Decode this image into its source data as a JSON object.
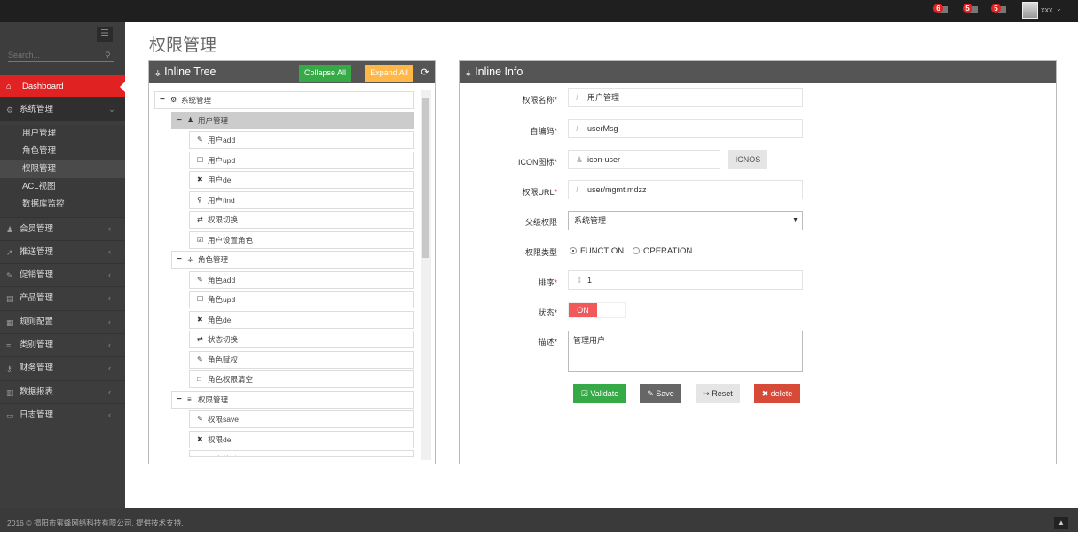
{
  "topbar": {
    "notifications": [
      {
        "count": "6",
        "icon": "bell-icon"
      },
      {
        "count": "5",
        "icon": "envelope-icon"
      },
      {
        "count": "5",
        "icon": "tasks-icon"
      }
    ],
    "user": "xxx"
  },
  "sidebar": {
    "search_placeholder": "Search...",
    "dashboard": "Dashboard",
    "items": [
      {
        "label": "系统管理",
        "icon": "cogs-icon",
        "expanded": true,
        "children": [
          "用户管理",
          "角色管理",
          "权限管理",
          "ACL视图",
          "数据库监控"
        ],
        "active_child": "权限管理"
      },
      {
        "label": "会员管理",
        "icon": "user-icon"
      },
      {
        "label": "推送管理",
        "icon": "share-icon"
      },
      {
        "label": "促销管理",
        "icon": "pencil-icon"
      },
      {
        "label": "产品管理",
        "icon": "book-icon"
      },
      {
        "label": "规则配置",
        "icon": "list-alt-icon"
      },
      {
        "label": "类别管理",
        "icon": "list-icon"
      },
      {
        "label": "财务管理",
        "icon": "key-icon"
      },
      {
        "label": "数据报表",
        "icon": "chart-icon"
      },
      {
        "label": "日志管理",
        "icon": "credit-card-icon"
      }
    ]
  },
  "page": {
    "title": "权限管理"
  },
  "tree": {
    "title": "Inline Tree",
    "collapse_all": "Collapse All",
    "expand_all": "Expand All",
    "nodes": [
      {
        "level": 0,
        "label": "系统管理",
        "icon": "cogs-icon",
        "expander": "−"
      },
      {
        "level": 1,
        "label": "用户管理",
        "icon": "user-icon",
        "expander": "−",
        "selected": true
      },
      {
        "level": 2,
        "label": "用户add",
        "icon": "pencil-icon"
      },
      {
        "level": 2,
        "label": "用户upd",
        "icon": "edit-icon"
      },
      {
        "level": 2,
        "label": "用户del",
        "icon": "times-icon"
      },
      {
        "level": 2,
        "label": "用户find",
        "icon": "search-icon"
      },
      {
        "level": 2,
        "label": "权限切换",
        "icon": "retweet-icon"
      },
      {
        "level": 2,
        "label": "用户设置角色",
        "icon": "check-square-icon"
      },
      {
        "level": 1,
        "label": "角色管理",
        "icon": "sitemap-icon",
        "expander": "−"
      },
      {
        "level": 2,
        "label": "角色add",
        "icon": "pencil-icon"
      },
      {
        "level": 2,
        "label": "角色upd",
        "icon": "edit-icon"
      },
      {
        "level": 2,
        "label": "角色del",
        "icon": "times-icon"
      },
      {
        "level": 2,
        "label": "状态切换",
        "icon": "retweet-icon"
      },
      {
        "level": 2,
        "label": "角色赋权",
        "icon": "pencil-icon"
      },
      {
        "level": 2,
        "label": "角色权限清空",
        "icon": "square-icon"
      },
      {
        "level": 1,
        "label": "权限管理",
        "icon": "list-icon",
        "expander": "−"
      },
      {
        "level": 2,
        "label": "权限save",
        "icon": "pencil-icon"
      },
      {
        "level": 2,
        "label": "权限del",
        "icon": "times-icon"
      },
      {
        "level": 2,
        "label": "提交校验",
        "icon": "edit-icon"
      }
    ]
  },
  "info": {
    "title": "Inline Info",
    "fields": {
      "name_label": "权限名称",
      "name": "用户管理",
      "code_label": "自编码",
      "code": "userMsg",
      "icon_label": "ICON图标",
      "icon_value": "icon-user",
      "icons_button": "ICNOS",
      "url_label": "权限URL",
      "url": "user/mgmt.mdzz",
      "parent_label": "父级权限",
      "parent": "系统管理",
      "type_label": "权限类型",
      "type_options": [
        "FUNCTION",
        "OPERATION"
      ],
      "type_selected": "FUNCTION",
      "sort_label": "排序",
      "sort": "1",
      "status_label": "状态",
      "status": "ON",
      "desc_label": "描述",
      "desc": "管理用户"
    },
    "buttons": {
      "validate": "Validate",
      "save": "Save",
      "reset": "Reset",
      "delete": "delete"
    }
  },
  "footer": {
    "text": "2016 © 揭阳市蜜蜂网络科技有限公司. 提供技术支持."
  },
  "colors": {
    "primary": "#e02222",
    "success": "#35aa47",
    "warning": "#ffb848",
    "dark": "#555555"
  }
}
